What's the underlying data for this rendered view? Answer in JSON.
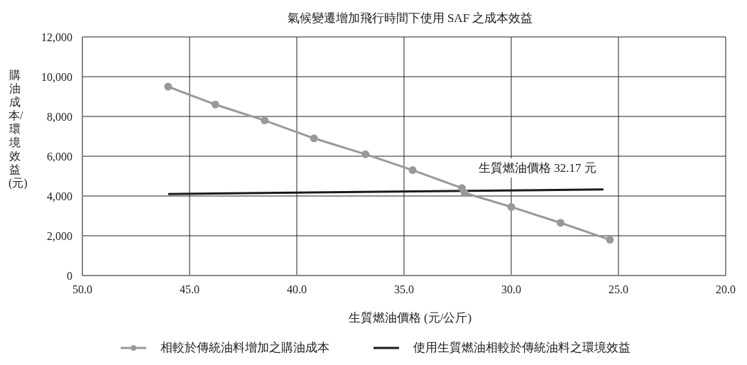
{
  "chart_data": {
    "type": "line",
    "title": "氣候變遷增加飛行時間下使用 SAF 之成本效益",
    "xlabel": "生質燃油價格 (元/公斤)",
    "ylabel": "購油成本/環境效益(元)",
    "xlim": [
      50,
      20
    ],
    "xticks": [
      {
        "value": 50,
        "label": "50.0"
      },
      {
        "value": 45,
        "label": "45.0"
      },
      {
        "value": 40,
        "label": "40.0"
      },
      {
        "value": 35,
        "label": "35.0"
      },
      {
        "value": 30,
        "label": "30.0"
      },
      {
        "value": 25,
        "label": "25.0"
      },
      {
        "value": 20,
        "label": "20.0"
      }
    ],
    "ylim": [
      0,
      12000
    ],
    "yticks": [
      0,
      {
        "value": 2000,
        "label": "2,000"
      },
      {
        "value": 4000,
        "label": "4,000"
      },
      {
        "value": 6000,
        "label": "6,000"
      },
      {
        "value": 8000,
        "label": "8,000"
      },
      {
        "value": 10000,
        "label": "10,000"
      },
      {
        "value": 12000,
        "label": "12,000"
      }
    ],
    "grid": true,
    "legend": "bottom",
    "annotations": [
      "生質燃油價格 32.17 元"
    ],
    "series": [
      {
        "name": "相較於傳統油料增加之購油成本",
        "color": "#999999",
        "marker": "circle",
        "x": [
          46.0,
          43.8,
          41.5,
          39.2,
          36.8,
          34.6,
          32.3,
          32.17,
          30.0,
          27.7,
          25.4
        ],
        "values": [
          9500,
          8600,
          7800,
          6900,
          6100,
          5300,
          4400,
          4150,
          3450,
          2650,
          1800
        ]
      },
      {
        "name": "使用生質燃油相較於傳統油料之環境效益",
        "color": "#1a1a1a",
        "marker": "none",
        "x": [
          46.0,
          25.7
        ],
        "values": [
          4100,
          4330
        ]
      }
    ]
  }
}
